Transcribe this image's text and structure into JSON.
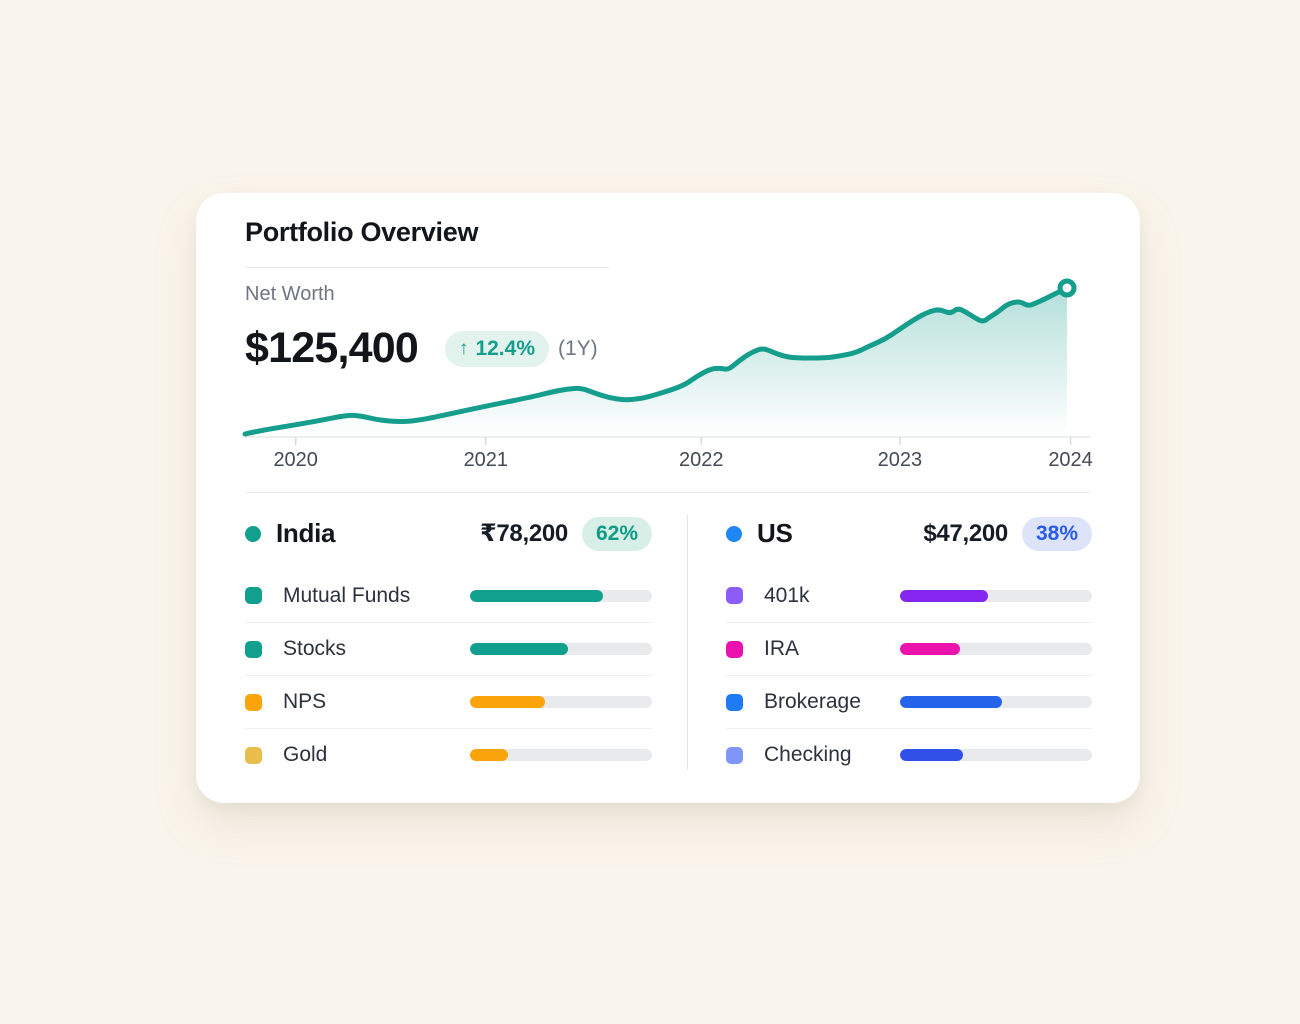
{
  "card": {
    "title": "Portfolio Overview",
    "net_worth_label": "Net Worth",
    "net_worth_value": "$125,400",
    "change_arrow": "↑",
    "change_value": "12.4%",
    "change_period": "(1Y)",
    "accent_teal": "#149E8C"
  },
  "chart_data": {
    "type": "area",
    "title": "Net Worth",
    "current_value": "$125,400",
    "change_1y": "+12.4%",
    "line_color": "#169E8C",
    "fill_gradient_top": "rgba(22,158,140,0.32)",
    "fill_gradient_bottom": "rgba(22,158,140,0)",
    "x_tick_labels": [
      "2020",
      "2021",
      "2022",
      "2023",
      "2024"
    ],
    "x_tick_pos": [
      0.06,
      0.285,
      0.54,
      0.775,
      0.977
    ],
    "y_axis": "hidden",
    "grid": "off",
    "end_marker": true,
    "points_pct": [
      [
        0.0,
        2.0
      ],
      [
        0.02,
        4.5
      ],
      [
        0.06,
        8.0
      ],
      [
        0.09,
        11.0
      ],
      [
        0.125,
        14.8
      ],
      [
        0.142,
        14.1
      ],
      [
        0.162,
        11.4
      ],
      [
        0.19,
        10.1
      ],
      [
        0.215,
        11.4
      ],
      [
        0.26,
        16.8
      ],
      [
        0.3,
        21.5
      ],
      [
        0.35,
        27.0
      ],
      [
        0.373,
        30.2
      ],
      [
        0.392,
        32.2
      ],
      [
        0.409,
        32.9
      ],
      [
        0.425,
        29.5
      ],
      [
        0.444,
        26.2
      ],
      [
        0.462,
        24.8
      ],
      [
        0.478,
        25.5
      ],
      [
        0.495,
        27.5
      ],
      [
        0.533,
        34.2
      ],
      [
        0.55,
        40.9
      ],
      [
        0.566,
        45.6
      ],
      [
        0.578,
        46.3
      ],
      [
        0.588,
        45.0
      ],
      [
        0.602,
        51.7
      ],
      [
        0.617,
        57.0
      ],
      [
        0.63,
        59.7
      ],
      [
        0.642,
        57.0
      ],
      [
        0.654,
        54.4
      ],
      [
        0.669,
        53.0
      ],
      [
        0.706,
        53.0
      ],
      [
        0.724,
        54.4
      ],
      [
        0.742,
        56.4
      ],
      [
        0.76,
        61.1
      ],
      [
        0.779,
        65.8
      ],
      [
        0.797,
        72.5
      ],
      [
        0.815,
        79.2
      ],
      [
        0.831,
        83.9
      ],
      [
        0.845,
        85.9
      ],
      [
        0.858,
        82.6
      ],
      [
        0.867,
        86.6
      ],
      [
        0.877,
        83.9
      ],
      [
        0.888,
        79.9
      ],
      [
        0.898,
        77.2
      ],
      [
        0.906,
        80.5
      ],
      [
        0.916,
        83.9
      ],
      [
        0.926,
        88.6
      ],
      [
        0.936,
        90.6
      ],
      [
        0.944,
        90.6
      ],
      [
        0.953,
        87.9
      ],
      [
        0.962,
        89.9
      ],
      [
        0.973,
        92.6
      ],
      [
        0.985,
        96.0
      ],
      [
        1.0,
        100.0
      ]
    ]
  },
  "allocation": {
    "columns": [
      {
        "name": "India",
        "dot_color": "#12A08E",
        "amount": "₹78,200",
        "share": "62%",
        "share_text_color": "#0F9C86",
        "share_bg": "#D8EFE7",
        "rows": [
          {
            "label": "Mutual Funds",
            "swatch": "#12A08E",
            "bar_color": "#12A08E",
            "fill_pct": 73
          },
          {
            "label": "Stocks",
            "swatch": "#12A08E",
            "bar_color": "#12A08E",
            "fill_pct": 54
          },
          {
            "label": "NPS",
            "swatch": "#F9A40B",
            "bar_color": "#F9A40B",
            "fill_pct": 41
          },
          {
            "label": "Gold",
            "swatch": "#E9BD4D",
            "bar_color": "#F9A40B",
            "fill_pct": 21
          }
        ]
      },
      {
        "name": "US",
        "dot_color": "#1E87F4",
        "amount": "$47,200",
        "share": "38%",
        "share_text_color": "#2A5BE8",
        "share_bg": "#DDE4FA",
        "rows": [
          {
            "label": "401k",
            "swatch": "#8B5CF6",
            "bar_color": "#8426F0",
            "fill_pct": 46
          },
          {
            "label": "IRA",
            "swatch": "#EB10B0",
            "bar_color": "#EB13AC",
            "fill_pct": 31
          },
          {
            "label": "Brokerage",
            "swatch": "#1E7BF5",
            "bar_color": "#2563EB",
            "fill_pct": 53
          },
          {
            "label": "Checking",
            "swatch": "#7E96F6",
            "bar_color": "#3050E8",
            "fill_pct": 33
          }
        ]
      }
    ]
  }
}
